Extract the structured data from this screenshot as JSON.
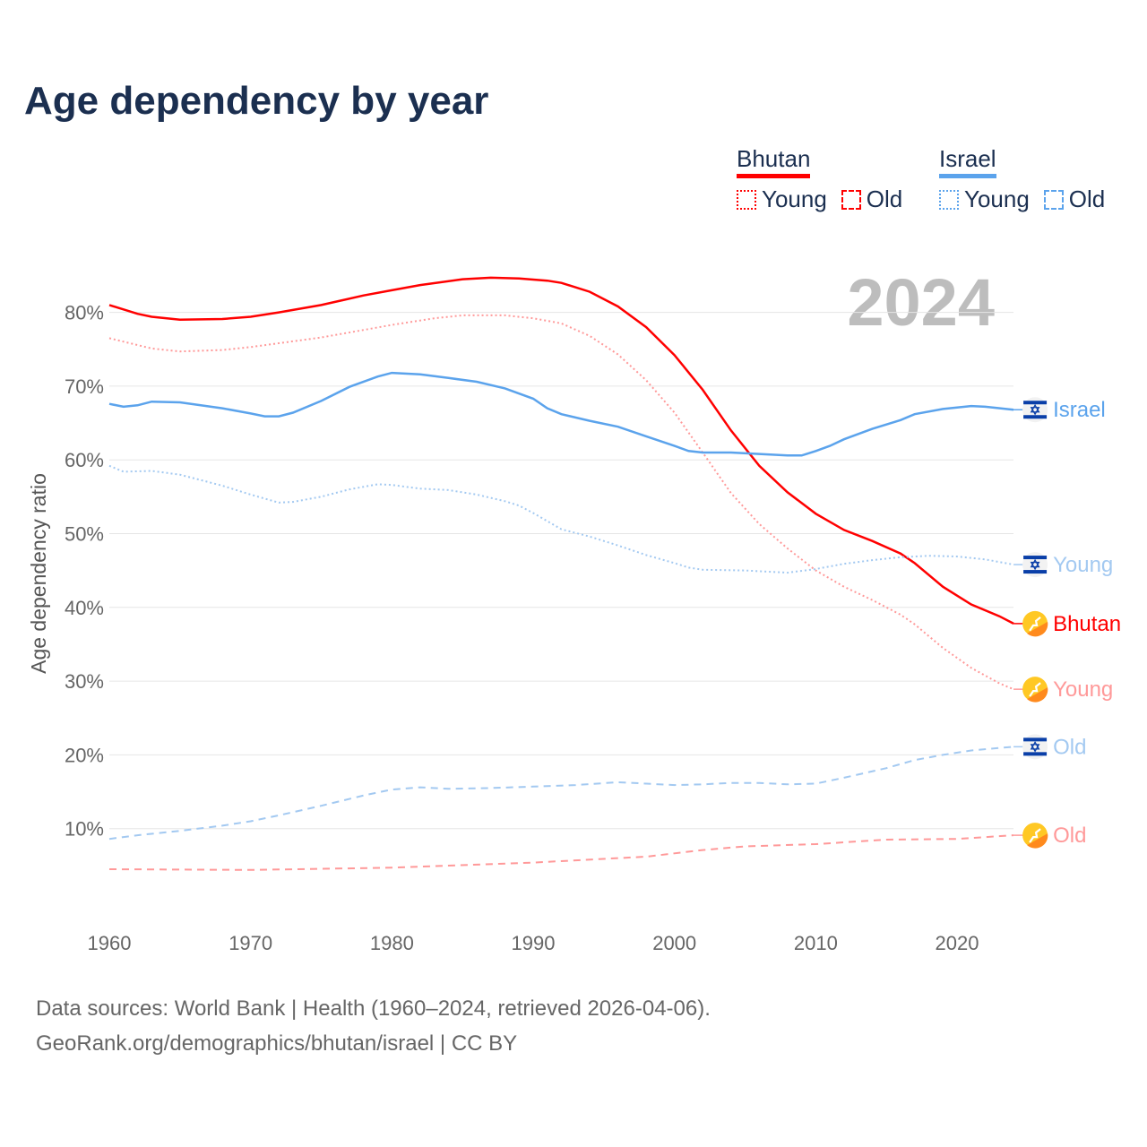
{
  "title": "Age dependency by year",
  "legend": {
    "groups": [
      {
        "name": "Bhutan",
        "color": "#ff0000",
        "young": "Young",
        "old": "Old"
      },
      {
        "name": "Israel",
        "color": "#5ba3ec",
        "young": "Young",
        "old": "Old"
      }
    ]
  },
  "year_label": "2024",
  "footer": {
    "line1": "Data sources: World Bank | Health (1960–2024, retrieved 2026-04-06).",
    "line2": "GeoRank.org/demographics/bhutan/israel | CC BY"
  },
  "chart_data": {
    "type": "line",
    "title": "Age dependency by year",
    "xlabel": "",
    "ylabel": "Age dependency ratio",
    "xlim": [
      1960,
      2024
    ],
    "ylim": [
      0,
      85
    ],
    "x_ticks": [
      1960,
      1970,
      1980,
      1990,
      2000,
      2010,
      2020
    ],
    "x_tick_labels": [
      "1960",
      "1970",
      "1980",
      "1990",
      "2000",
      "2010",
      "2020"
    ],
    "y_ticks": [
      10,
      20,
      30,
      40,
      50,
      60,
      70,
      80
    ],
    "y_tick_labels": [
      "10%",
      "20%",
      "30%",
      "40%",
      "50%",
      "60%",
      "70%",
      "80%"
    ],
    "grid": true,
    "legend_position": "top-right",
    "series": [
      {
        "name": "Bhutan",
        "end_label": "Bhutan",
        "country": "Bhutan",
        "style": "solid",
        "color": "#ff0000",
        "x": [
          1960,
          1962,
          1963,
          1965,
          1968,
          1970,
          1972,
          1975,
          1978,
          1980,
          1982,
          1985,
          1987,
          1989,
          1991,
          1992,
          1994,
          1996,
          1998,
          2000,
          2002,
          2004,
          2006,
          2008,
          2010,
          2012,
          2014,
          2016,
          2017,
          2019,
          2021,
          2023,
          2024
        ],
        "y": [
          81.0,
          79.8,
          79.4,
          79.0,
          79.1,
          79.4,
          80.0,
          81.0,
          82.3,
          83.0,
          83.7,
          84.5,
          84.7,
          84.6,
          84.3,
          84.0,
          82.8,
          80.8,
          78.0,
          74.2,
          69.5,
          64.0,
          59.2,
          55.6,
          52.7,
          50.5,
          49.0,
          47.3,
          46.0,
          42.8,
          40.4,
          38.8,
          37.8
        ]
      },
      {
        "name": "Bhutan Young",
        "end_label": "Young",
        "country": "Bhutan",
        "style": "dotted",
        "color": "#ff9999",
        "x": [
          1960,
          1963,
          1965,
          1968,
          1970,
          1975,
          1980,
          1983,
          1985,
          1988,
          1990,
          1992,
          1994,
          1996,
          1998,
          2000,
          2002,
          2004,
          2006,
          2008,
          2010,
          2012,
          2014,
          2016,
          2017,
          2019,
          2021,
          2023,
          2024
        ],
        "y": [
          76.5,
          75.1,
          74.7,
          74.9,
          75.3,
          76.6,
          78.3,
          79.2,
          79.6,
          79.6,
          79.2,
          78.5,
          76.8,
          74.3,
          70.8,
          66.4,
          61.0,
          55.5,
          51.3,
          48.0,
          45.0,
          42.8,
          41.0,
          39.0,
          37.7,
          34.5,
          31.8,
          29.7,
          28.9
        ]
      },
      {
        "name": "Bhutan Old",
        "end_label": "Old",
        "country": "Bhutan",
        "style": "dashed",
        "color": "#ff9999",
        "x": [
          1960,
          1970,
          1980,
          1990,
          1998,
          2002,
          2005,
          2010,
          2015,
          2020,
          2024
        ],
        "y": [
          4.5,
          4.4,
          4.7,
          5.4,
          6.2,
          7.1,
          7.6,
          7.9,
          8.5,
          8.6,
          9.1
        ]
      },
      {
        "name": "Israel",
        "end_label": "Israel",
        "country": "Israel",
        "style": "solid",
        "color": "#5ba3ec",
        "x": [
          1960,
          1961,
          1962,
          1963,
          1965,
          1968,
          1970,
          1971,
          1972,
          1973,
          1975,
          1977,
          1979,
          1980,
          1982,
          1984,
          1986,
          1988,
          1990,
          1991,
          1992,
          1994,
          1996,
          1998,
          2000,
          2001,
          2002,
          2004,
          2006,
          2008,
          2009,
          2010,
          2011,
          2012,
          2014,
          2016,
          2017,
          2019,
          2021,
          2022,
          2024
        ],
        "y": [
          67.6,
          67.2,
          67.4,
          67.9,
          67.8,
          67.0,
          66.3,
          65.9,
          65.9,
          66.4,
          68.0,
          69.9,
          71.3,
          71.8,
          71.6,
          71.1,
          70.6,
          69.7,
          68.3,
          67.0,
          66.2,
          65.3,
          64.5,
          63.2,
          61.9,
          61.2,
          61.0,
          61.0,
          60.8,
          60.6,
          60.6,
          61.2,
          61.9,
          62.8,
          64.2,
          65.4,
          66.2,
          66.9,
          67.3,
          67.2,
          66.8
        ]
      },
      {
        "name": "Israel Young",
        "end_label": "Young",
        "country": "Israel",
        "style": "dotted",
        "color": "#a3c9f1",
        "x": [
          1960,
          1961,
          1963,
          1965,
          1968,
          1970,
          1972,
          1973,
          1975,
          1977,
          1979,
          1980,
          1982,
          1984,
          1986,
          1988,
          1989,
          1990,
          1992,
          1994,
          1996,
          1998,
          2000,
          2001,
          2002,
          2005,
          2008,
          2010,
          2012,
          2014,
          2016,
          2018,
          2020,
          2022,
          2024
        ],
        "y": [
          59.2,
          58.4,
          58.5,
          58.0,
          56.5,
          55.3,
          54.2,
          54.3,
          55.0,
          56.0,
          56.7,
          56.6,
          56.1,
          55.9,
          55.3,
          54.4,
          53.8,
          52.8,
          50.6,
          49.6,
          48.4,
          47.1,
          46.0,
          45.4,
          45.1,
          45.0,
          44.7,
          45.2,
          45.9,
          46.4,
          46.8,
          47.0,
          46.9,
          46.5,
          45.8
        ]
      },
      {
        "name": "Israel Old",
        "end_label": "Old",
        "country": "Israel",
        "style": "dashed",
        "color": "#a3c9f1",
        "x": [
          1960,
          1962,
          1965,
          1968,
          1970,
          1972,
          1975,
          1978,
          1980,
          1982,
          1984,
          1987,
          1990,
          1993,
          1996,
          1998,
          2000,
          2002,
          2004,
          2006,
          2008,
          2010,
          2012,
          2015,
          2017,
          2019,
          2021,
          2024
        ],
        "y": [
          8.6,
          9.1,
          9.7,
          10.4,
          11.0,
          11.8,
          13.1,
          14.5,
          15.3,
          15.6,
          15.4,
          15.5,
          15.7,
          15.9,
          16.3,
          16.1,
          15.9,
          16.0,
          16.2,
          16.2,
          16.0,
          16.1,
          16.9,
          18.2,
          19.3,
          20.0,
          20.6,
          21.1
        ]
      }
    ]
  }
}
